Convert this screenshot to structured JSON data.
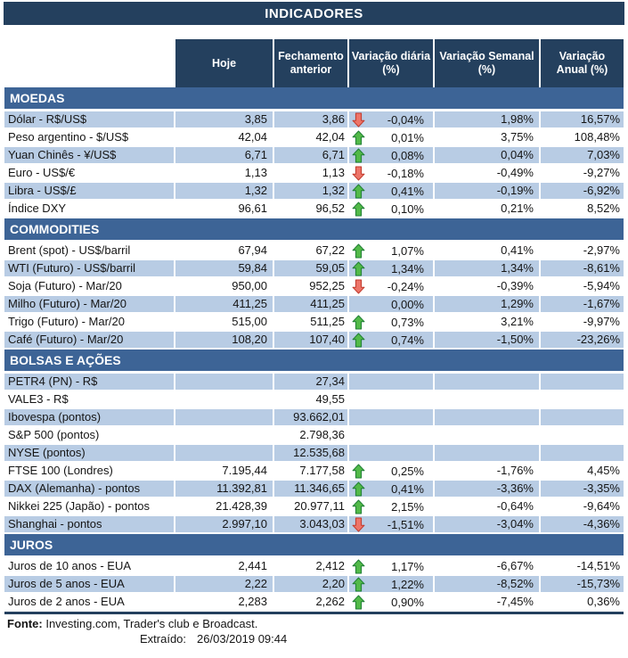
{
  "title": "INDICADORES",
  "columns": [
    {
      "lines": [
        "Hoje"
      ]
    },
    {
      "lines": [
        "Fechamento",
        "anterior"
      ]
    },
    {
      "lines": [
        "Variação diária",
        "(%)"
      ]
    },
    {
      "lines": [
        "Variação Semanal",
        "(%)"
      ]
    },
    {
      "lines": [
        "Variação",
        "Anual (%)"
      ]
    }
  ],
  "sections": [
    {
      "name": "MOEDAS",
      "rows": [
        {
          "label": "Dólar - R$/US$",
          "hoje": "3,85",
          "fechamento": "3,86",
          "arrow": "down",
          "diaria": "-0,04%",
          "semanal": "1,98%",
          "anual": "16,57%"
        },
        {
          "label": "Peso argentino - $/US$",
          "hoje": "42,04",
          "fechamento": "42,04",
          "arrow": "up",
          "diaria": "0,01%",
          "semanal": "3,75%",
          "anual": "108,48%"
        },
        {
          "label": "Yuan Chinês - ¥/US$",
          "hoje": "6,71",
          "fechamento": "6,71",
          "arrow": "up",
          "diaria": "0,08%",
          "semanal": "0,04%",
          "anual": "7,03%"
        },
        {
          "label": "Euro - US$/€",
          "hoje": "1,13",
          "fechamento": "1,13",
          "arrow": "down",
          "diaria": "-0,18%",
          "semanal": "-0,49%",
          "anual": "-9,27%"
        },
        {
          "label": "Libra - US$/£",
          "hoje": "1,32",
          "fechamento": "1,32",
          "arrow": "up",
          "diaria": "0,41%",
          "semanal": "-0,19%",
          "anual": "-6,92%"
        },
        {
          "label": "Índice DXY",
          "hoje": "96,61",
          "fechamento": "96,52",
          "arrow": "up",
          "diaria": "0,10%",
          "semanal": "0,21%",
          "anual": "8,52%"
        }
      ]
    },
    {
      "name": "COMMODITIES",
      "rows": [
        {
          "label": "Brent (spot) - US$/barril",
          "hoje": "67,94",
          "fechamento": "67,22",
          "arrow": "up",
          "diaria": "1,07%",
          "semanal": "0,41%",
          "anual": "-2,97%"
        },
        {
          "label": "WTI (Futuro) - US$/barril",
          "hoje": "59,84",
          "fechamento": "59,05",
          "arrow": "up",
          "diaria": "1,34%",
          "semanal": "1,34%",
          "anual": "-8,61%"
        },
        {
          "label": "Soja (Futuro) - Mar/20",
          "hoje": "950,00",
          "fechamento": "952,25",
          "arrow": "down",
          "diaria": "-0,24%",
          "semanal": "-0,39%",
          "anual": "-5,94%"
        },
        {
          "label": "Milho (Futuro) - Mar/20",
          "hoje": "411,25",
          "fechamento": "411,25",
          "arrow": "",
          "diaria": "0,00%",
          "semanal": "1,29%",
          "anual": "-1,67%"
        },
        {
          "label": "Trigo (Futuro) - Mar/20",
          "hoje": "515,00",
          "fechamento": "511,25",
          "arrow": "up",
          "diaria": "0,73%",
          "semanal": "3,21%",
          "anual": "-9,97%"
        },
        {
          "label": "Café (Futuro) - Mar/20",
          "hoje": "108,20",
          "fechamento": "107,40",
          "arrow": "up",
          "diaria": "0,74%",
          "semanal": "-1,50%",
          "anual": "-23,26%"
        }
      ]
    },
    {
      "name": "BOLSAS E AÇÕES",
      "rows": [
        {
          "label": "PETR4 (PN) - R$",
          "hoje": "",
          "fechamento": "27,34",
          "arrow": "",
          "diaria": "",
          "semanal": "",
          "anual": ""
        },
        {
          "label": "VALE3 - R$",
          "hoje": "",
          "fechamento": "49,55",
          "arrow": "",
          "diaria": "",
          "semanal": "",
          "anual": ""
        },
        {
          "label": "Ibovespa (pontos)",
          "hoje": "",
          "fechamento": "93.662,01",
          "arrow": "",
          "diaria": "",
          "semanal": "",
          "anual": ""
        },
        {
          "label": "S&P 500 (pontos)",
          "hoje": "",
          "fechamento": "2.798,36",
          "arrow": "",
          "diaria": "",
          "semanal": "",
          "anual": ""
        },
        {
          "label": "NYSE (pontos)",
          "hoje": "",
          "fechamento": "12.535,68",
          "arrow": "",
          "diaria": "",
          "semanal": "",
          "anual": ""
        },
        {
          "label": "FTSE 100 (Londres)",
          "hoje": "7.195,44",
          "fechamento": "7.177,58",
          "arrow": "up",
          "diaria": "0,25%",
          "semanal": "-1,76%",
          "anual": "4,45%"
        },
        {
          "label": "DAX (Alemanha) - pontos",
          "hoje": "11.392,81",
          "fechamento": "11.346,65",
          "arrow": "up",
          "diaria": "0,41%",
          "semanal": "-3,36%",
          "anual": "-3,35%"
        },
        {
          "label": "Nikkei 225 (Japão) - pontos",
          "hoje": "21.428,39",
          "fechamento": "20.977,11",
          "arrow": "up",
          "diaria": "2,15%",
          "semanal": "-0,64%",
          "anual": "-9,64%"
        },
        {
          "label": "Shanghai - pontos",
          "hoje": "2.997,10",
          "fechamento": "3.043,03",
          "arrow": "down",
          "diaria": "-1,51%",
          "semanal": "-3,04%",
          "anual": "-4,36%"
        }
      ]
    },
    {
      "name": "JUROS",
      "rows": [
        {
          "label": "Juros de 10 anos - EUA",
          "hoje": "2,441",
          "fechamento": "2,412",
          "arrow": "up",
          "diaria": "1,17%",
          "semanal": "-6,67%",
          "anual": "-14,51%"
        },
        {
          "label": "Juros de 5 anos - EUA",
          "hoje": "2,22",
          "fechamento": "2,20",
          "arrow": "up",
          "diaria": "1,22%",
          "semanal": "-8,52%",
          "anual": "-15,73%"
        },
        {
          "label": "Juros de 2 anos - EUA",
          "hoje": "2,283",
          "fechamento": "2,262",
          "arrow": "up",
          "diaria": "0,90%",
          "semanal": "-7,45%",
          "anual": "0,36%"
        }
      ]
    }
  ],
  "footer": {
    "source_label": "Fonte:",
    "source_text": " Investing.com, Trader's club e Broadcast.",
    "extracted_label": "Extraído:",
    "extracted_value": "26/03/2019 09:44"
  },
  "colors": {
    "header_navy": "#24405E",
    "section_steel_blue": "#3D6496",
    "row_shaded_blue": "#B8CCE4",
    "up_arrow_fill": "#52B948",
    "up_arrow_border": "#1E7E34",
    "down_arrow_fill": "#ED7468",
    "down_arrow_border": "#C0392B"
  },
  "icons": {
    "up": "up-arrow-icon",
    "down": "down-arrow-icon"
  }
}
